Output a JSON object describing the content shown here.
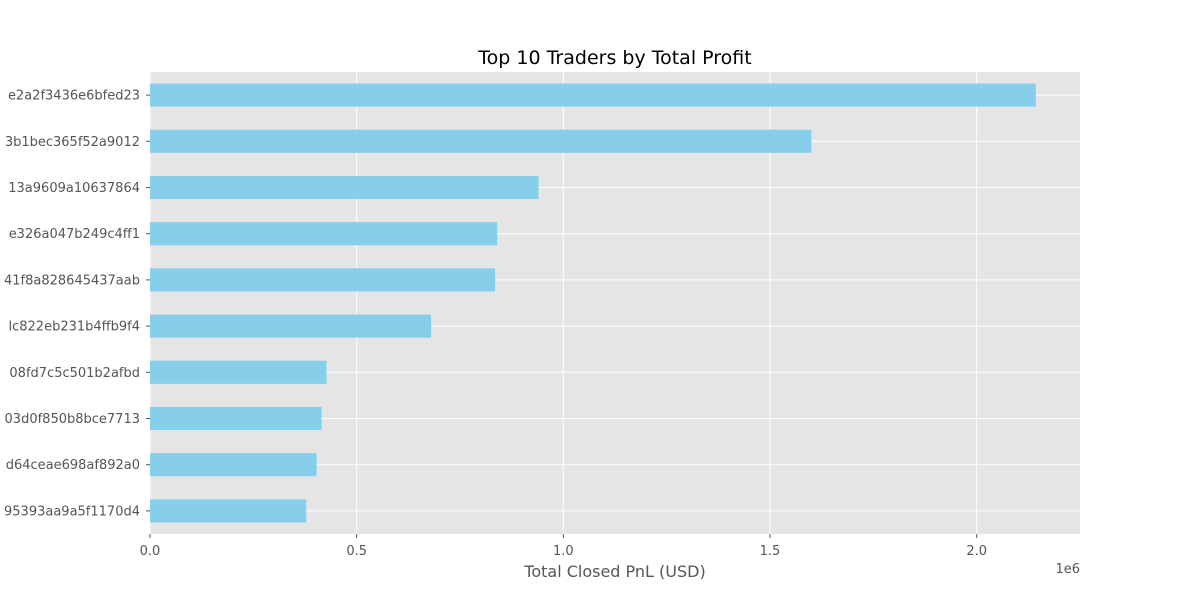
{
  "chart_data": {
    "type": "bar",
    "orientation": "horizontal",
    "title": "Top 10 Traders by Total Profit",
    "xlabel": "Total Closed PnL (USD)",
    "ylabel": "",
    "x_offset_label": "1e6",
    "x_scale": 1000000,
    "xlim": [
      0,
      2250000
    ],
    "x_ticks": [
      0,
      500000,
      1000000,
      1500000,
      2000000
    ],
    "x_tick_labels": [
      "0.0",
      "0.5",
      "1.0",
      "1.5",
      "2.0"
    ],
    "grid": true,
    "bar_color": "#87ceeb",
    "background_color": "#e5e5e5",
    "categories": [
      "e2a2f3436e6bfed23",
      "3b1bec365f52a9012",
      "13a9609a10637864",
      "e326a047b249c4ff1",
      "41f8a828645437aab",
      "lc822eb231b4ffb9f4",
      "08fd7c5c501b2afbd",
      "03d0f850b8bce7713",
      "d64ceae698af892a0",
      "95393aa9a5f1170d4"
    ],
    "values": [
      2143000,
      1600000,
      940000,
      840000,
      835000,
      680000,
      427000,
      415000,
      403000,
      378000
    ]
  }
}
